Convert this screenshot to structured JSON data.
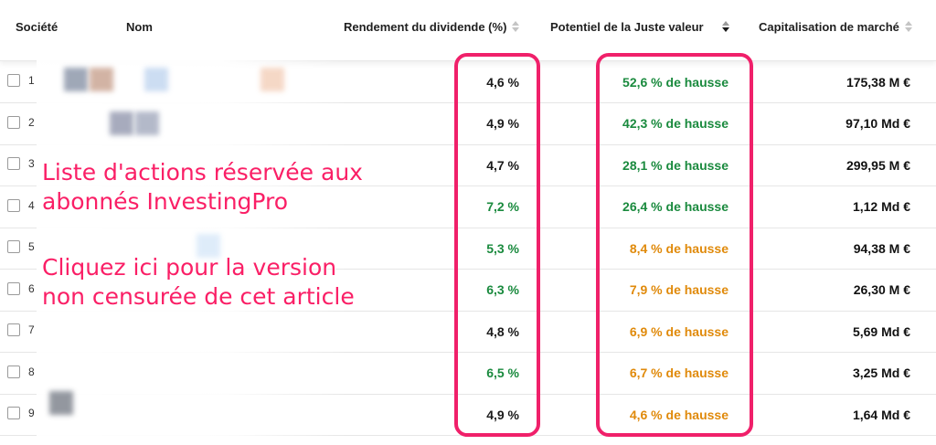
{
  "columns": {
    "company": "Société",
    "name": "Nom",
    "dividend_yield": "Rendement du dividende (%)",
    "fair_value": "Potentiel de la Juste valeur",
    "market_cap": "Capitalisation de marché"
  },
  "rows": [
    {
      "num": "1",
      "dividend": "4,6 %",
      "fair": "52,6 % de hausse",
      "cap": "175,38 M €"
    },
    {
      "num": "2",
      "dividend": "4,9 %",
      "fair": "42,3 % de hausse",
      "cap": "97,10 Md €"
    },
    {
      "num": "3",
      "dividend": "4,7 %",
      "fair": "28,1 % de hausse",
      "cap": "299,95 M €"
    },
    {
      "num": "4",
      "dividend": "7,2 %",
      "fair": "26,4 % de hausse",
      "cap": "1,12 Md €"
    },
    {
      "num": "5",
      "dividend": "5,3 %",
      "fair": "8,4 % de hausse",
      "cap": "94,38 M €"
    },
    {
      "num": "6",
      "dividend": "6,3 %",
      "fair": "7,9 % de hausse",
      "cap": "26,30 M €"
    },
    {
      "num": "7",
      "dividend": "4,8 %",
      "fair": "6,9 % de hausse",
      "cap": "5,69 Md €"
    },
    {
      "num": "8",
      "dividend": "6,5 %",
      "fair": "6,7 % de hausse",
      "cap": "3,25 Md €"
    },
    {
      "num": "9",
      "dividend": "4,9 %",
      "fair": "4,6 % de hausse",
      "cap": "1,64 Md €"
    }
  ],
  "overlay": {
    "line1": "Liste d'actions réservée aux",
    "line2": "abonnés InvestingPro",
    "line3": "Cliquez ici pour la version",
    "line4": "non censurée de cet article"
  },
  "colors": {
    "green": "#1a8a3e",
    "orange": "#e08a0b",
    "neutral": "#1a1a1a",
    "highlight": "#f0206a",
    "overlay_text": "#fa1f66"
  },
  "dividend_colors": [
    "neutral",
    "neutral",
    "neutral",
    "green",
    "green",
    "green",
    "neutral",
    "green",
    "neutral"
  ],
  "fair_colors": [
    "green",
    "green",
    "green",
    "green",
    "orange",
    "orange",
    "orange",
    "orange",
    "orange"
  ]
}
